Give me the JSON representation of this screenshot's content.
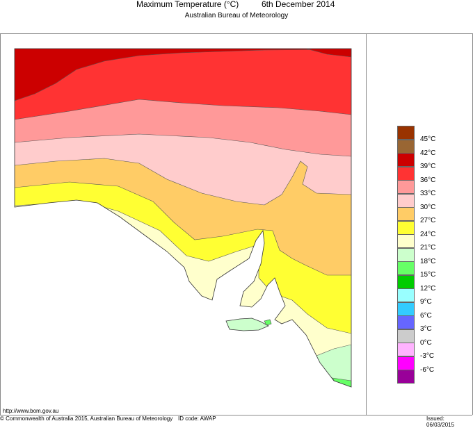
{
  "header": {
    "title": "Maximum Temperature (°C)",
    "date": "6th December 2014",
    "subtitle": "Australian Bureau of Meteorology"
  },
  "legend": {
    "colors": [
      "#993300",
      "#996633",
      "#cc0000",
      "#ff3333",
      "#ff9999",
      "#ffcccc",
      "#ffcc66",
      "#ffff33",
      "#ffffcc",
      "#ccffcc",
      "#66ff66",
      "#00cc00",
      "#99ffff",
      "#33ccff",
      "#6666ff",
      "#cccccc",
      "#ffb3ff",
      "#ff00ff",
      "#990099"
    ],
    "labels": [
      "45°C",
      "42°C",
      "39°C",
      "36°C",
      "33°C",
      "30°C",
      "27°C",
      "24°C",
      "21°C",
      "18°C",
      "15°C",
      "12°C",
      "9°C",
      "6°C",
      "3°C",
      "0°C",
      "-3°C",
      "-6°C"
    ]
  },
  "footer": {
    "url": "http://www.bom.gov.au",
    "copyright": "© Commonwealth of Australia 2015, Australian Bureau of Meteorology",
    "id_code": "ID code: AWAP",
    "issued": "Issued: 06/03/2015"
  }
}
